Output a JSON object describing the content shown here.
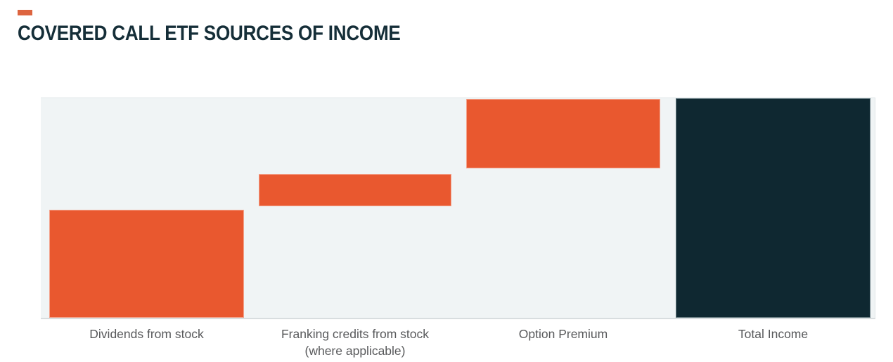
{
  "header": {
    "accent_color": "#DD6540",
    "title": "COVERED CALL ETF SOURCES OF INCOME",
    "title_color": "#152E38"
  },
  "chart_data": {
    "type": "bar",
    "subtype": "waterfall",
    "title": "COVERED CALL ETF SOURCES OF INCOME",
    "orientation": "vertical",
    "grid": false,
    "legend": false,
    "value_axis_visible": false,
    "ylim": [
      0,
      100
    ],
    "plot_background": "#F0F4F5",
    "axis_line_color": "#D8DDDF",
    "label_color": "#58595B",
    "increase_color": "#E9582F",
    "total_color": "#0F2831",
    "categories": [
      "Dividends from stock",
      "Franking credits from stock (where applicable)",
      "Option Premium",
      "Total Income"
    ],
    "values": [
      49,
      15,
      32,
      100
    ],
    "values_note": "relative share of total income, estimated from bar heights; no numeric axis shown",
    "bars": [
      {
        "label_line1": "Dividends from stock",
        "label_line2": "",
        "start": 0,
        "end": 49.2,
        "value": 49,
        "role": "increase",
        "color": "#E9582F"
      },
      {
        "label_line1": "Franking credits from stock",
        "label_line2": "(where applicable)",
        "start": 50.8,
        "end": 65.5,
        "value": 15,
        "role": "increase",
        "color": "#E9582F"
      },
      {
        "label_line1": "Option Premium",
        "label_line2": "",
        "start": 68.1,
        "end": 99.7,
        "value": 32,
        "role": "increase",
        "color": "#E9582F"
      },
      {
        "label_line1": "Total Income",
        "label_line2": "",
        "start": 0,
        "end": 100,
        "value": 100,
        "role": "total",
        "color": "#0F2831"
      }
    ]
  }
}
